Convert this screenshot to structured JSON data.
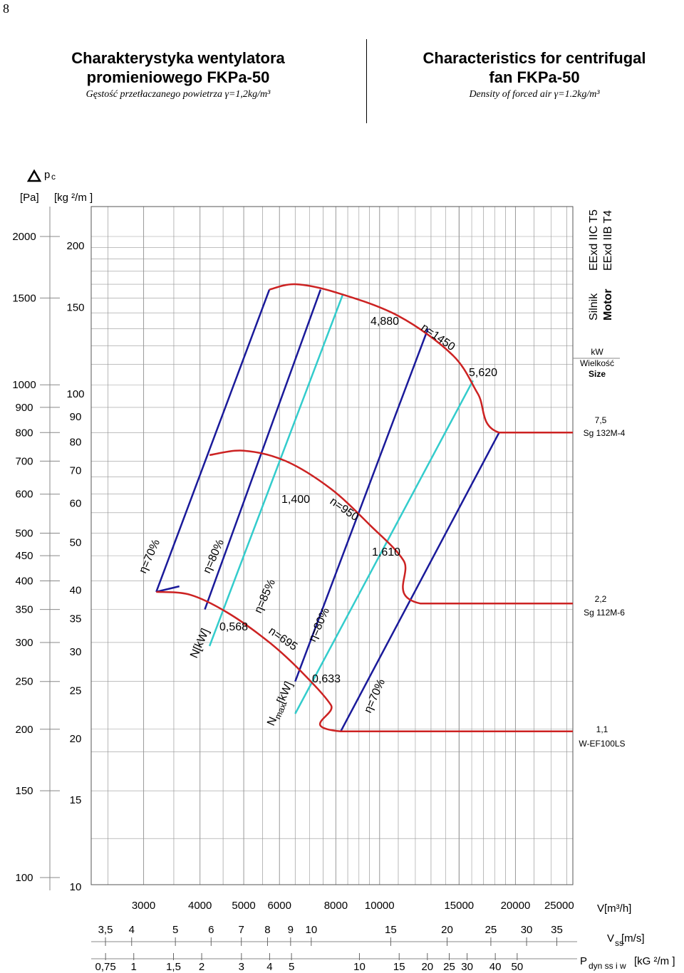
{
  "page_number": "8",
  "header": {
    "pl_title_1": "Charakterystyka  wentylatora",
    "pl_title_2": "promieniowego  FKPa-50",
    "pl_density": "Gęstość  przetłaczanego  powietrza  γ=1,2kg/m³",
    "en_title_1": "Characteristics for centrifugal",
    "en_title_2": "fan   FKPa-50",
    "en_density": "Density of forced air  γ=1.2kg/m³"
  },
  "side_panel": {
    "motor_pl": "Silnik",
    "motor_en": "Motor",
    "cert_1": "EExd IIC  T5",
    "cert_2": "EExd IIB  T4",
    "kw": "kW",
    "size_pl": "Wielkość",
    "size_en": "Size",
    "motors": [
      {
        "kw": "7,5",
        "size": "Sg 132M-4"
      },
      {
        "kw": "2,2",
        "size": "Sg 112M-6"
      },
      {
        "kw": "1,1",
        "size": "W-EF100LS"
      }
    ]
  },
  "chart_data": {
    "type": "line",
    "title": "",
    "y_label_symbol": "p",
    "y_label_sub": "c",
    "y_unit_pa": "[Pa]",
    "y_unit_kg": "[kg ²/m ]",
    "y_ticks_pa": [
      "2000",
      "1500",
      "1000",
      "900",
      "800",
      "700",
      "600",
      "500",
      "450",
      "400",
      "350",
      "300",
      "250",
      "200",
      "150",
      "100"
    ],
    "y_ticks_kg": [
      "200",
      "150",
      "100",
      "90",
      "80",
      "70",
      "60",
      "50",
      "40",
      "35",
      "30",
      "25",
      "20",
      "15",
      "10"
    ],
    "y_range_pa": [
      100,
      2000
    ],
    "y_scale": "log",
    "x_label": "V[m³/h]",
    "x_range": [
      2000,
      30000
    ],
    "x_scale": "log",
    "x_ticks": [
      "3000",
      "4000",
      "5000",
      "6000",
      "8000",
      "10000",
      "15000",
      "20000",
      "25000"
    ],
    "vss_label": "V",
    "vss_sub": "ss",
    "vss_unit": " [m/s]",
    "vss_ticks": [
      "3,5",
      "4",
      "5",
      "6",
      "7",
      "8",
      "9",
      "10",
      "15",
      "20",
      "25",
      "30",
      "35"
    ],
    "pdyn_label": "P",
    "pdyn_sub": "dyn ss i w",
    "pdyn_unit": "[kG ²/m ]",
    "pdyn_ticks": [
      "0,75",
      "1",
      "1,5",
      "2",
      "3",
      "4",
      "5",
      "10",
      "15",
      "20",
      "25",
      "30",
      "40",
      "50"
    ],
    "grid": true,
    "series": [
      {
        "name": "n=1450",
        "color": "#cc2222",
        "points": [
          [
            5700,
            1560
          ],
          [
            6500,
            1600
          ],
          [
            8000,
            1540
          ],
          [
            11000,
            1380
          ],
          [
            14500,
            1150
          ],
          [
            16500,
            960
          ],
          [
            18400,
            800
          ],
          [
            30000,
            800
          ]
        ]
      },
      {
        "name": "n=950",
        "color": "#cc2222",
        "points": [
          [
            4200,
            720
          ],
          [
            5000,
            735
          ],
          [
            6200,
            700
          ],
          [
            7800,
            615
          ],
          [
            9500,
            520
          ],
          [
            11300,
            440
          ],
          [
            12300,
            360
          ],
          [
            30000,
            360
          ]
        ]
      },
      {
        "name": "n=695",
        "color": "#cc2222",
        "points": [
          [
            3200,
            380
          ],
          [
            3800,
            375
          ],
          [
            4600,
            345
          ],
          [
            5700,
            300
          ],
          [
            6700,
            262
          ],
          [
            7800,
            224
          ],
          [
            8200,
            198
          ],
          [
            30000,
            198
          ]
        ]
      }
    ],
    "efficiency_lines": [
      {
        "name": "η=70%",
        "color": "#1a1a9a",
        "points": [
          [
            3200,
            380
          ],
          [
            5700,
            1560
          ]
        ]
      },
      {
        "name": "η=80%",
        "color": "#1a1a9a",
        "points": [
          [
            4100,
            350
          ],
          [
            7400,
            1560
          ]
        ]
      },
      {
        "name": "η=85%",
        "color": "#33cccc",
        "points": [
          [
            4200,
            295
          ],
          [
            8300,
            1530
          ]
        ]
      },
      {
        "name": "η=80%",
        "color": "#1a1a9a",
        "points": [
          [
            6500,
            250
          ],
          [
            12800,
            1300
          ]
        ]
      },
      {
        "name": "η=70%",
        "color": "#1a1a9a",
        "points": [
          [
            8200,
            198
          ],
          [
            18400,
            800
          ]
        ]
      },
      {
        "name": "",
        "color": "#1a1a9a",
        "points": [
          [
            3200,
            380
          ],
          [
            3600,
            390
          ]
        ]
      },
      {
        "name": "",
        "color": "#33cccc",
        "points": [
          [
            6500,
            215
          ],
          [
            16100,
            1020
          ]
        ]
      }
    ],
    "annotations": [
      {
        "text": "4,880"
      },
      {
        "text": "5,620"
      },
      {
        "text": "1,400"
      },
      {
        "text": "1,610"
      },
      {
        "text": "0,568"
      },
      {
        "text": "0,633"
      },
      {
        "text": "N[kW]"
      },
      {
        "text": "N"
      },
      {
        "text": "max"
      },
      {
        "text": "[kW]"
      }
    ]
  }
}
